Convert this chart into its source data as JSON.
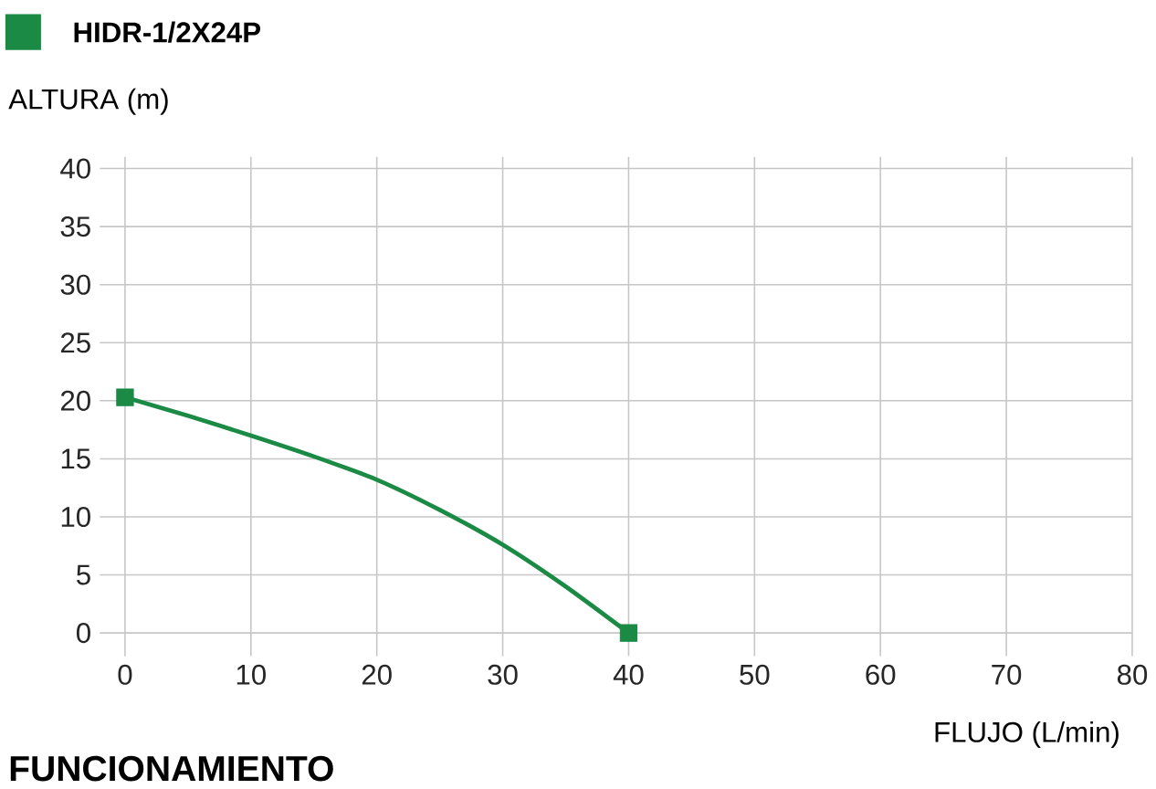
{
  "chart_data": {
    "type": "line",
    "title": "FUNCIONAMIENTO",
    "xlabel": "FLUJO (L/min)",
    "ylabel": "ALTURA (m)",
    "x": [
      0,
      5,
      10,
      15,
      20,
      25,
      30,
      35,
      40
    ],
    "series": [
      {
        "name": "HIDR-1/2X24P",
        "color": "#1a8a45",
        "values": [
          20.3,
          18.7,
          17.0,
          15.2,
          13.2,
          10.6,
          7.6,
          4.0,
          0
        ],
        "marker": "none"
      },
      {
        "type": "scatter",
        "color": "#1a8a45",
        "x": [
          0,
          40
        ],
        "values": [
          20.3,
          0
        ],
        "marker": "square"
      }
    ],
    "xlim": [
      -2,
      80
    ],
    "ylim": [
      -2,
      41
    ],
    "xticks": [
      0,
      10,
      20,
      30,
      40,
      50,
      60,
      70,
      80
    ],
    "yticks": [
      0,
      5,
      10,
      15,
      20,
      25,
      30,
      35,
      40
    ],
    "grid": true,
    "legend": "top left"
  }
}
